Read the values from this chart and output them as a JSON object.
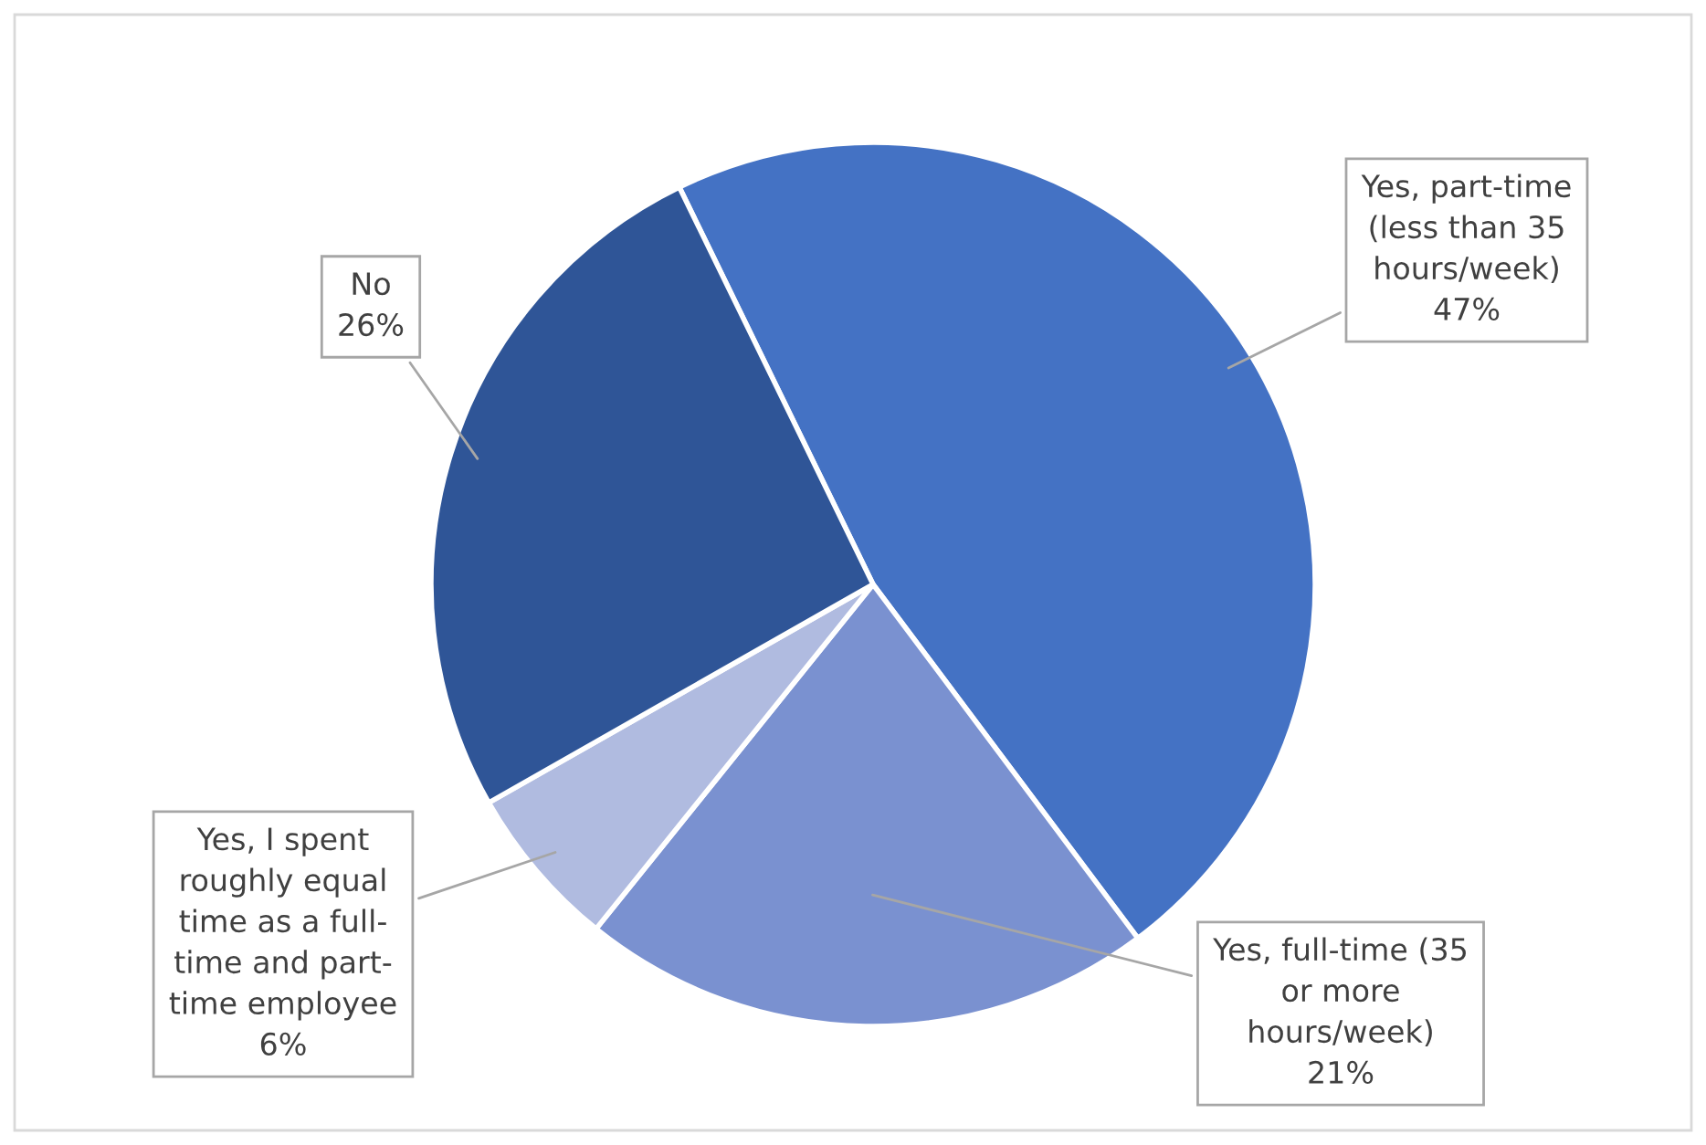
{
  "chart_data": {
    "type": "pie",
    "categories": [
      "Yes, part-time\n(less than 35\nhours/week)",
      "Yes, full-time (35\nor more\nhours/week)",
      "Yes, I spent\nroughly equal\ntime as a full-\ntime and part-\ntime employee",
      "No"
    ],
    "values": [
      47,
      21,
      6,
      26
    ],
    "colors": [
      "#4472c4",
      "#7a91d0",
      "#b0bbe0",
      "#2f5597"
    ],
    "value_labels": [
      "47%",
      "21%",
      "6%",
      "26%"
    ]
  }
}
